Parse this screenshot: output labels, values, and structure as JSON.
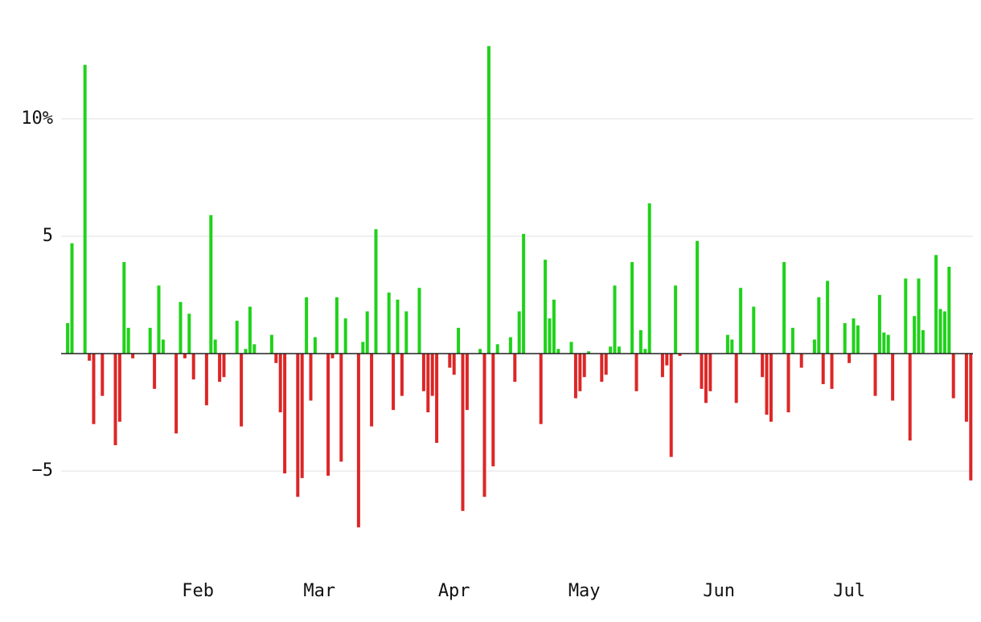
{
  "chart_data": {
    "type": "bar",
    "categories": [
      null,
      null,
      null,
      null,
      null,
      null,
      null,
      null,
      null,
      null,
      null,
      null,
      null,
      null,
      null,
      null,
      null,
      null,
      null,
      null,
      null,
      null,
      null,
      null,
      null,
      null,
      null,
      null,
      null,
      null,
      null,
      "Feb",
      null,
      null,
      null,
      null,
      null,
      null,
      null,
      null,
      null,
      null,
      null,
      null,
      null,
      null,
      null,
      null,
      null,
      null,
      null,
      null,
      null,
      null,
      null,
      null,
      null,
      null,
      null,
      "Mar",
      null,
      null,
      null,
      null,
      null,
      null,
      null,
      null,
      null,
      null,
      null,
      null,
      null,
      null,
      null,
      null,
      null,
      null,
      null,
      null,
      null,
      null,
      null,
      null,
      null,
      null,
      null,
      null,
      null,
      null,
      "Apr",
      null,
      null,
      null,
      null,
      null,
      null,
      null,
      null,
      null,
      null,
      null,
      null,
      null,
      null,
      null,
      null,
      null,
      null,
      null,
      null,
      null,
      null,
      null,
      null,
      null,
      null,
      null,
      null,
      null,
      "May",
      null,
      null,
      null,
      null,
      null,
      null,
      null,
      null,
      null,
      null,
      null,
      null,
      null,
      null,
      null,
      null,
      null,
      null,
      null,
      null,
      null,
      null,
      null,
      null,
      null,
      null,
      null,
      null,
      null,
      null,
      "Jun",
      null,
      null,
      null,
      null,
      null,
      null,
      null,
      null,
      null,
      null,
      null,
      null,
      null,
      null,
      null,
      null,
      null,
      null,
      null,
      null,
      null,
      null,
      null,
      null,
      null,
      null,
      null,
      null,
      null,
      "Jul",
      null,
      null,
      null,
      null,
      null,
      null,
      null,
      null,
      null,
      null,
      null,
      null,
      null,
      null,
      null,
      null,
      null,
      null,
      null,
      null,
      null,
      null,
      null,
      null,
      null,
      null,
      null,
      null
    ],
    "values": [
      null,
      1.3,
      4.7,
      null,
      null,
      12.3,
      -0.3,
      -3.0,
      null,
      -1.8,
      null,
      null,
      -3.9,
      -2.9,
      3.9,
      1.1,
      -0.2,
      null,
      null,
      null,
      1.1,
      -1.5,
      2.9,
      0.6,
      null,
      null,
      -3.4,
      2.2,
      -0.2,
      1.7,
      -1.1,
      null,
      null,
      -2.2,
      5.9,
      0.6,
      -1.2,
      -1.0,
      null,
      null,
      1.4,
      -3.1,
      0.2,
      2.0,
      0.4,
      null,
      null,
      null,
      0.8,
      -0.4,
      -2.5,
      -5.1,
      null,
      null,
      -6.1,
      -5.3,
      2.4,
      -2.0,
      0.7,
      null,
      null,
      -5.2,
      -0.2,
      2.4,
      -4.6,
      1.5,
      null,
      null,
      -7.4,
      0.5,
      1.8,
      -3.1,
      5.3,
      null,
      null,
      2.6,
      -2.4,
      2.3,
      -1.8,
      1.8,
      null,
      null,
      2.8,
      -1.6,
      -2.5,
      -1.8,
      -3.8,
      null,
      null,
      -0.6,
      -0.9,
      1.1,
      -6.7,
      -2.4,
      null,
      null,
      0.2,
      -6.1,
      13.1,
      -4.8,
      0.4,
      null,
      null,
      0.7,
      -1.2,
      1.8,
      5.1,
      null,
      null,
      null,
      -3.0,
      4.0,
      1.5,
      2.3,
      0.2,
      null,
      null,
      0.5,
      -1.9,
      -1.6,
      -1.0,
      0.1,
      null,
      null,
      -1.2,
      -0.9,
      0.3,
      2.9,
      0.3,
      null,
      null,
      3.9,
      -1.6,
      1.0,
      0.2,
      6.4,
      null,
      null,
      -1.0,
      -0.5,
      -4.4,
      2.9,
      -0.1,
      null,
      null,
      null,
      4.8,
      -1.5,
      -2.1,
      -1.6,
      null,
      null,
      null,
      0.8,
      0.6,
      -2.1,
      2.8,
      null,
      null,
      2.0,
      null,
      -1.0,
      -2.6,
      -2.9,
      null,
      null,
      3.9,
      -2.5,
      1.1,
      null,
      -0.6,
      null,
      null,
      0.6,
      2.4,
      -1.3,
      3.1,
      -1.5,
      null,
      null,
      1.3,
      -0.4,
      1.5,
      1.2,
      null,
      null,
      null,
      -1.8,
      2.5,
      0.9,
      0.8,
      -2.0,
      null,
      null,
      3.2,
      -3.7,
      1.6,
      3.2,
      1.0,
      null,
      null,
      4.2,
      1.9,
      1.8,
      3.7,
      -1.9,
      null,
      null,
      -2.9,
      -5.4
    ],
    "up_color": "#1fd21a",
    "down_color": "#dc2626",
    "ylim": [
      -9,
      14
    ],
    "yticks": [
      {
        "value": -5,
        "label": "−5"
      },
      5,
      {
        "value": 10,
        "label": "10%"
      }
    ],
    "grid": true
  }
}
